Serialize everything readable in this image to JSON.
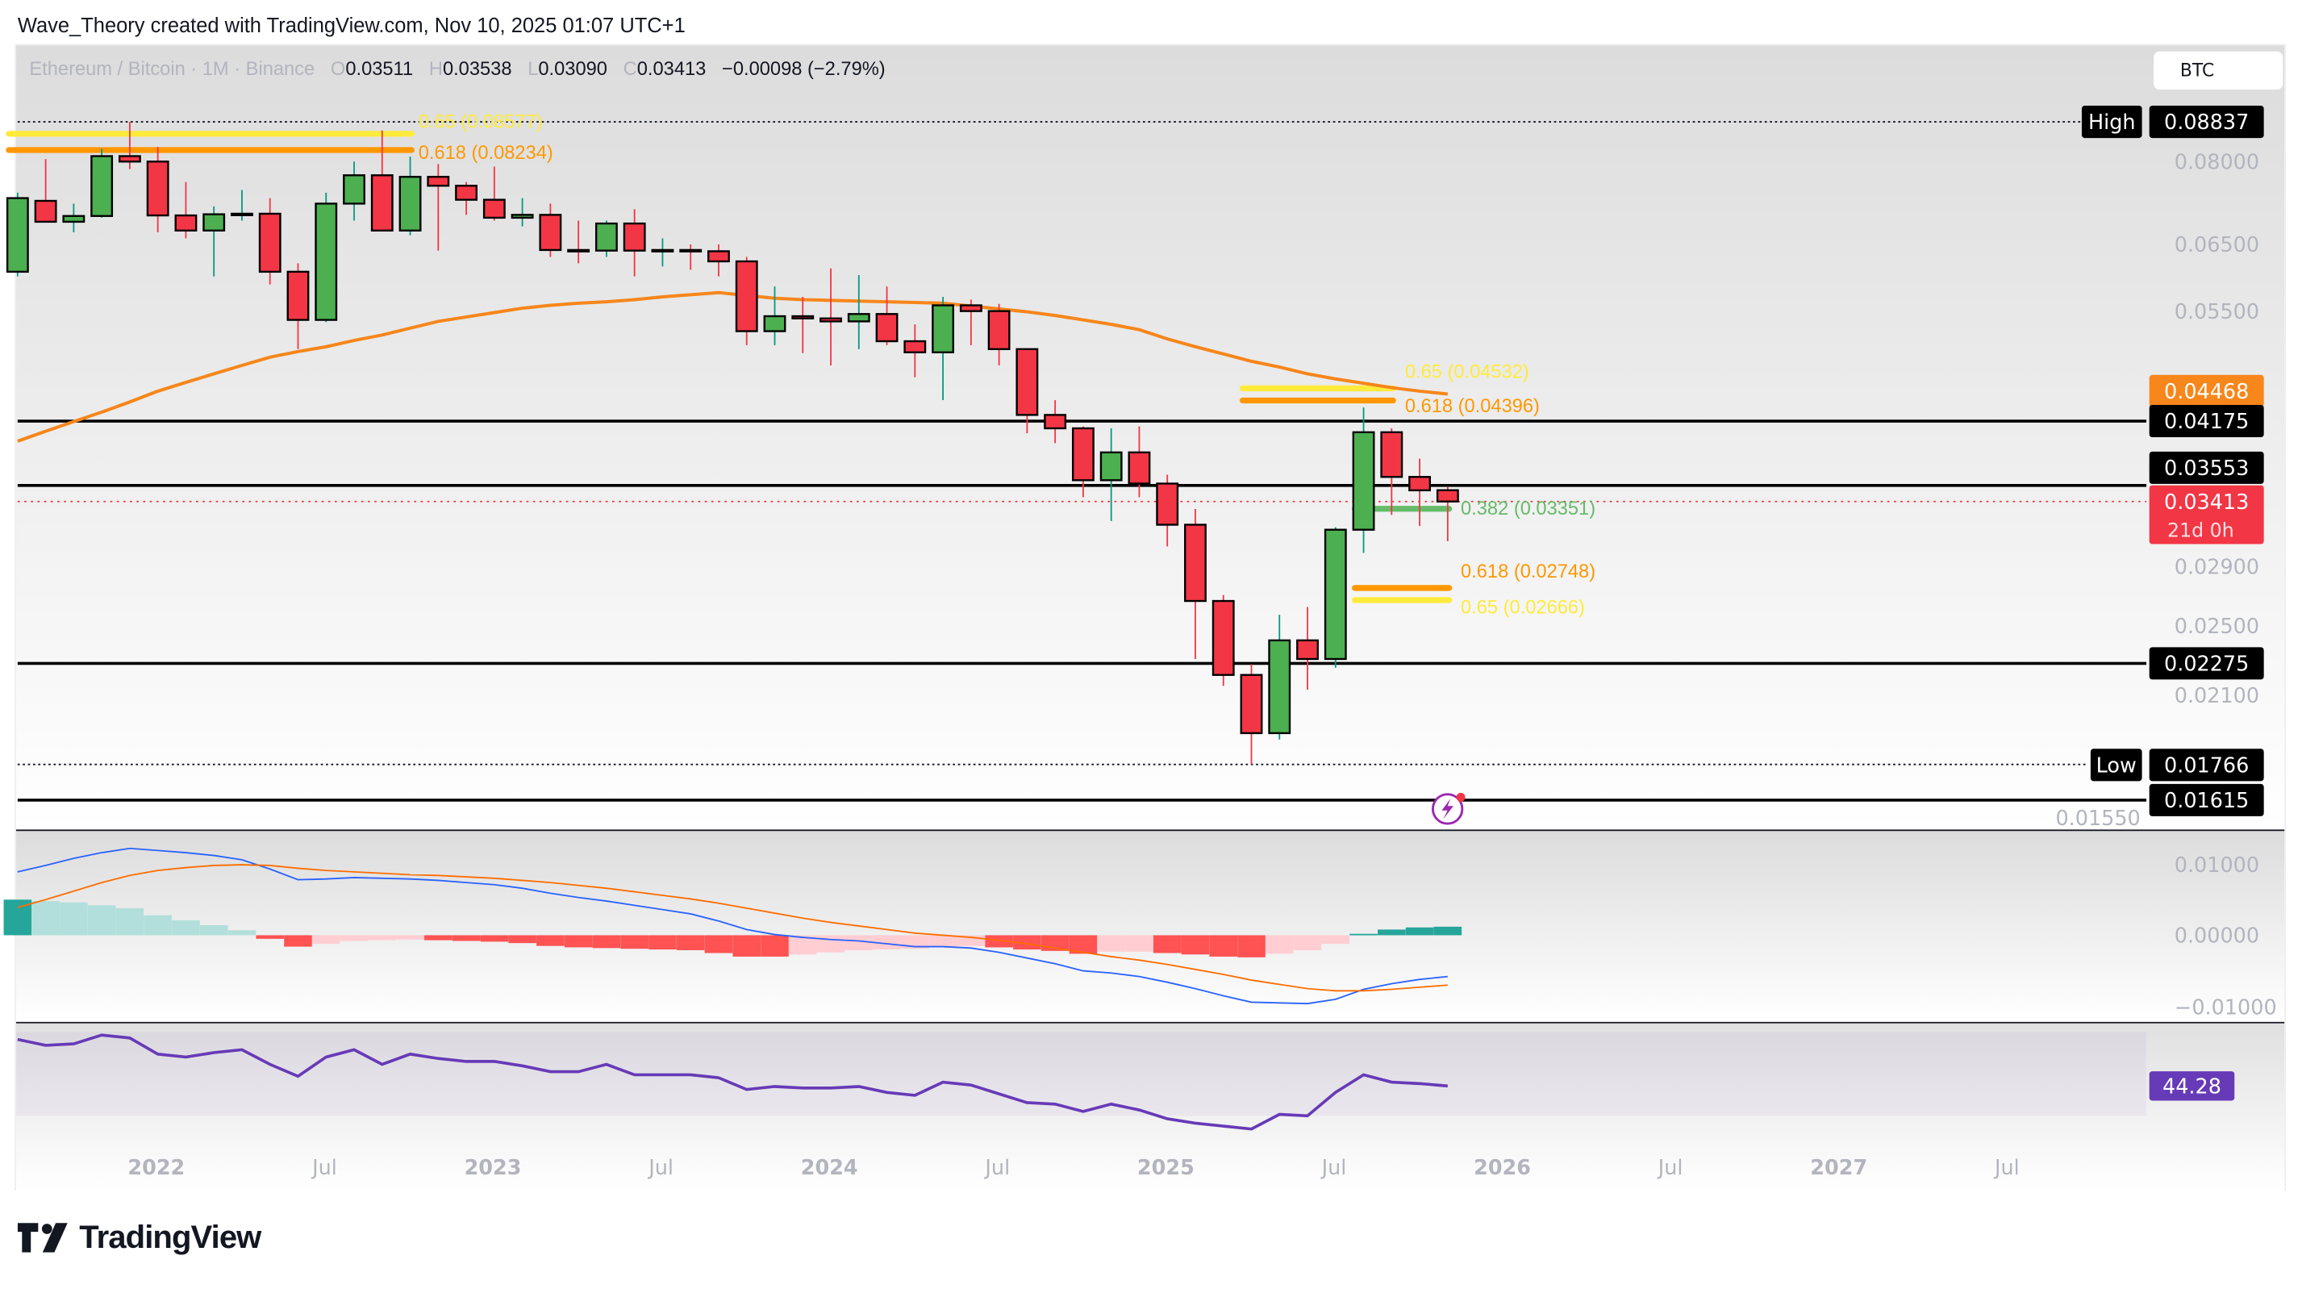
{
  "header": {
    "attribution": "Wave_Theory created with TradingView.com, Nov 10, 2025 01:07 UTC+1"
  },
  "legend": {
    "symbol": "Ethereum / Bitcoin · 1M · Binance",
    "o_label": "O",
    "o": "0.03511",
    "h_label": "H",
    "h": "0.03538",
    "l_label": "L",
    "l": "0.03090",
    "c_label": "C",
    "c": "0.03413",
    "change": "−0.00098 (−2.79%)"
  },
  "currency_button": "BTC",
  "footer": {
    "logo_text": "TradingView"
  },
  "colors": {
    "up": "#4caf50",
    "down": "#f23645",
    "ema": "#f7861b",
    "macd": "#2962ff",
    "signal": "#ff6d00",
    "rsi": "#673ab7",
    "fib_618": "#ff9800",
    "fib_65": "#ffeb3b",
    "fib_382": "#66bb6a"
  },
  "chart_data": {
    "type": "candlestick",
    "scale": "log",
    "timeframe": "1M",
    "candles_columns": [
      "month",
      "open",
      "high",
      "low",
      "close"
    ],
    "candles": [
      [
        "2021-08",
        0.0607,
        0.074,
        0.06,
        0.073
      ],
      [
        "2021-09",
        0.0725,
        0.0805,
        0.069,
        0.0688
      ],
      [
        "2021-10",
        0.0688,
        0.072,
        0.067,
        0.0698
      ],
      [
        "2021-11",
        0.0698,
        0.0826,
        0.0695,
        0.0811
      ],
      [
        "2021-12",
        0.0811,
        0.08837,
        0.0785,
        0.08
      ],
      [
        "2022-01",
        0.08,
        0.083,
        0.067,
        0.0699
      ],
      [
        "2022-02",
        0.0699,
        0.076,
        0.066,
        0.0673
      ],
      [
        "2022-03",
        0.0673,
        0.0715,
        0.06,
        0.0701
      ],
      [
        "2022-04",
        0.0701,
        0.0745,
        0.069,
        0.0702
      ],
      [
        "2022-05",
        0.0702,
        0.073,
        0.0588,
        0.0607
      ],
      [
        "2022-06",
        0.0607,
        0.062,
        0.05,
        0.0538
      ],
      [
        "2022-07",
        0.0538,
        0.074,
        0.0535,
        0.072
      ],
      [
        "2022-08",
        0.072,
        0.08,
        0.069,
        0.0773
      ],
      [
        "2022-09",
        0.0773,
        0.0865,
        0.068,
        0.0673
      ],
      [
        "2022-10",
        0.0673,
        0.081,
        0.0665,
        0.077
      ],
      [
        "2022-11",
        0.077,
        0.0795,
        0.064,
        0.0753
      ],
      [
        "2022-12",
        0.0753,
        0.076,
        0.07,
        0.0727
      ],
      [
        "2023-01",
        0.0727,
        0.079,
        0.069,
        0.0695
      ],
      [
        "2023-02",
        0.0695,
        0.073,
        0.068,
        0.07
      ],
      [
        "2023-03",
        0.07,
        0.072,
        0.063,
        0.0641
      ],
      [
        "2023-04",
        0.0641,
        0.069,
        0.062,
        0.064
      ],
      [
        "2023-05",
        0.064,
        0.069,
        0.063,
        0.0685
      ],
      [
        "2023-06",
        0.0685,
        0.071,
        0.06,
        0.064
      ],
      [
        "2023-07",
        0.064,
        0.066,
        0.0615,
        0.0641
      ],
      [
        "2023-08",
        0.0641,
        0.065,
        0.061,
        0.0639
      ],
      [
        "2023-09",
        0.0639,
        0.065,
        0.06,
        0.0623
      ],
      [
        "2023-10",
        0.0623,
        0.063,
        0.0505,
        0.0523
      ],
      [
        "2023-11",
        0.0523,
        0.0585,
        0.0505,
        0.0543
      ],
      [
        "2023-12",
        0.0543,
        0.057,
        0.0495,
        0.054
      ],
      [
        "2024-01",
        0.054,
        0.0612,
        0.048,
        0.0536
      ],
      [
        "2024-02",
        0.0536,
        0.0602,
        0.05,
        0.0546
      ],
      [
        "2024-03",
        0.0546,
        0.0585,
        0.0505,
        0.051
      ],
      [
        "2024-04",
        0.051,
        0.0532,
        0.0466,
        0.0496
      ],
      [
        "2024-05",
        0.0496,
        0.057,
        0.044,
        0.0558
      ],
      [
        "2024-06",
        0.0558,
        0.0566,
        0.0505,
        0.055
      ],
      [
        "2024-07",
        0.055,
        0.056,
        0.048,
        0.05
      ],
      [
        "2024-08",
        0.05,
        0.05,
        0.0405,
        0.0424
      ],
      [
        "2024-09",
        0.0424,
        0.044,
        0.0395,
        0.041
      ],
      [
        "2024-10",
        0.041,
        0.0412,
        0.0345,
        0.036
      ],
      [
        "2024-11",
        0.036,
        0.041,
        0.0325,
        0.0386
      ],
      [
        "2024-12",
        0.0386,
        0.0412,
        0.0345,
        0.0357
      ],
      [
        "2025-01",
        0.0357,
        0.0365,
        0.0305,
        0.0322
      ],
      [
        "2025-02",
        0.0322,
        0.0335,
        0.023,
        0.0266
      ],
      [
        "2025-03",
        0.0266,
        0.027,
        0.0215,
        0.0221
      ],
      [
        "2025-04",
        0.0221,
        0.0227,
        0.01766,
        0.0191
      ],
      [
        "2025-05",
        0.0191,
        0.0257,
        0.0188,
        0.0241
      ],
      [
        "2025-06",
        0.0241,
        0.0262,
        0.0213,
        0.023
      ],
      [
        "2025-07",
        0.023,
        0.032,
        0.0225,
        0.0318
      ],
      [
        "2025-08",
        0.0318,
        0.0432,
        0.03,
        0.0406
      ],
      [
        "2025-09",
        0.0406,
        0.041,
        0.033,
        0.0363
      ],
      [
        "2025-10",
        0.0363,
        0.038,
        0.0321,
        0.0351
      ],
      [
        "2025-11",
        0.03511,
        0.03538,
        0.0309,
        0.03413
      ]
    ],
    "ema": [
      0.0397,
      0.0407,
      0.0417,
      0.0427,
      0.0438,
      0.045,
      0.046,
      0.047,
      0.048,
      0.049,
      0.0497,
      0.0503,
      0.0511,
      0.0518,
      0.0527,
      0.0536,
      0.0542,
      0.0548,
      0.0554,
      0.0558,
      0.0561,
      0.0563,
      0.0566,
      0.057,
      0.0573,
      0.0576,
      0.0572,
      0.0568,
      0.0566,
      0.0565,
      0.0564,
      0.0563,
      0.0562,
      0.0561,
      0.0557,
      0.0553,
      0.0549,
      0.0544,
      0.0538,
      0.0532,
      0.0525,
      0.0513,
      0.0503,
      0.0494,
      0.0485,
      0.0478,
      0.047,
      0.0464,
      0.0459,
      0.0454,
      0.045,
      0.04468
    ],
    "price_ticks": [
      "0.08000",
      "0.06500",
      "0.05500",
      "0.02900",
      "0.02500",
      "0.02100",
      "0.01550"
    ],
    "high": {
      "label": "High",
      "value": "0.08837"
    },
    "low": {
      "label": "Low",
      "value": "0.01766"
    },
    "last_price": {
      "value": "0.03413",
      "countdown": "21d 0h"
    },
    "ema_last": "0.04468",
    "horizontal_levels": [
      "0.04175",
      "0.03553",
      "0.02275",
      "0.01615"
    ],
    "fib_levels": [
      {
        "ratio": "0.65",
        "price": 0.08577,
        "label": "0.65 (0.08577)",
        "from": "2021-08",
        "to": "2022-10",
        "color": "#ffeb3b"
      },
      {
        "ratio": "0.618",
        "price": 0.08234,
        "label": "0.618 (0.08234)",
        "from": "2021-08",
        "to": "2022-10",
        "color": "#ff9800"
      },
      {
        "ratio": "0.65",
        "price": 0.04532,
        "label": "0.65 (0.04532)",
        "from": "2025-04",
        "to": "2025-09",
        "color": "#ffeb3b"
      },
      {
        "ratio": "0.618",
        "price": 0.04396,
        "label": "0.618 (0.04396)",
        "from": "2025-04",
        "to": "2025-09",
        "color": "#ff9800"
      },
      {
        "ratio": "0.382",
        "price": 0.03351,
        "label": "0.382 (0.03351)",
        "from": "2025-08",
        "to": "2025-11",
        "color": "#66bb6a"
      },
      {
        "ratio": "0.618",
        "price": 0.02748,
        "label": "0.618 (0.02748)",
        "from": "2025-08",
        "to": "2025-11",
        "color": "#ff9800"
      },
      {
        "ratio": "0.65",
        "price": 0.02666,
        "label": "0.65 (0.02666)",
        "from": "2025-08",
        "to": "2025-11",
        "color": "#ffeb3b"
      }
    ],
    "macd": {
      "ticks": [
        "0.01000",
        "0.00000",
        "−0.01000"
      ],
      "range": [
        -0.0115,
        0.0145
      ],
      "macd": [
        0.0089,
        0.0098,
        0.0108,
        0.0116,
        0.0122,
        0.0119,
        0.0116,
        0.0112,
        0.0106,
        0.0093,
        0.0078,
        0.0079,
        0.0081,
        0.008,
        0.0079,
        0.0077,
        0.0074,
        0.0071,
        0.0066,
        0.0059,
        0.0053,
        0.0048,
        0.0042,
        0.0036,
        0.003,
        0.002,
        0.0008,
        0.0001,
        -0.0003,
        -0.0006,
        -0.0008,
        -0.0012,
        -0.0016,
        -0.0016,
        -0.0018,
        -0.0024,
        -0.0032,
        -0.004,
        -0.005,
        -0.0053,
        -0.0058,
        -0.0066,
        -0.0075,
        -0.0085,
        -0.0094,
        -0.0095,
        -0.0096,
        -0.009,
        -0.0076,
        -0.0068,
        -0.0062,
        -0.0058
      ],
      "signal": [
        0.0039,
        0.005,
        0.0062,
        0.0074,
        0.0084,
        0.0091,
        0.0095,
        0.0098,
        0.0099,
        0.0098,
        0.0094,
        0.0091,
        0.0089,
        0.0087,
        0.0085,
        0.0084,
        0.0082,
        0.008,
        0.0077,
        0.0074,
        0.007,
        0.0066,
        0.0061,
        0.0056,
        0.0051,
        0.0045,
        0.0038,
        0.0031,
        0.0024,
        0.0018,
        0.0013,
        0.0008,
        0.0003,
        0.0,
        -0.0003,
        -0.0007,
        -0.0012,
        -0.0018,
        -0.0024,
        -0.003,
        -0.0035,
        -0.0041,
        -0.0048,
        -0.0055,
        -0.0063,
        -0.0069,
        -0.0075,
        -0.0078,
        -0.0078,
        -0.0076,
        -0.0073,
        -0.007
      ]
    },
    "rsi": {
      "last": "44.28",
      "band": [
        30,
        70
      ],
      "values": [
        66.5,
        63.7,
        64.4,
        68.6,
        67.2,
        59.5,
        58.1,
        60.2,
        61.6,
        54.6,
        48.9,
        58.1,
        61.6,
        54.6,
        59.5,
        57.4,
        56.0,
        56.0,
        53.9,
        51.1,
        51.1,
        54.6,
        49.6,
        49.6,
        49.6,
        48.2,
        42.6,
        44.0,
        43.3,
        43.3,
        44.0,
        41.2,
        39.8,
        46.1,
        44.7,
        40.5,
        36.3,
        35.6,
        32.1,
        35.6,
        32.8,
        28.6,
        26.5,
        25.1,
        23.7,
        30.7,
        30.0,
        41.2,
        49.6,
        46.1,
        45.4,
        44.28
      ]
    },
    "time_ticks": [
      {
        "month": "2022-01",
        "label": "2022"
      },
      {
        "month": "2022-07",
        "label": "Jul"
      },
      {
        "month": "2023-01",
        "label": "2023"
      },
      {
        "month": "2023-07",
        "label": "Jul"
      },
      {
        "month": "2024-01",
        "label": "2024"
      },
      {
        "month": "2024-07",
        "label": "Jul"
      },
      {
        "month": "2025-01",
        "label": "2025"
      },
      {
        "month": "2025-07",
        "label": "Jul"
      },
      {
        "month": "2026-01",
        "label": "2026"
      },
      {
        "month": "2026-07",
        "label": "Jul"
      },
      {
        "month": "2027-01",
        "label": "2027"
      },
      {
        "month": "2027-07",
        "label": "Jul"
      }
    ]
  }
}
